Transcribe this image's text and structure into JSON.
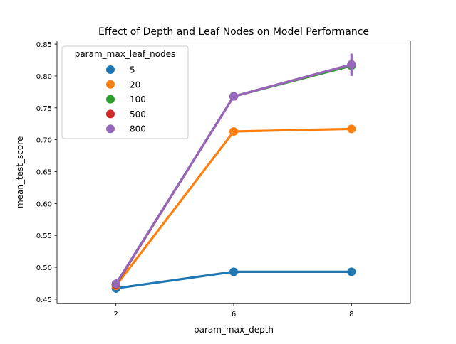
{
  "chart_data": {
    "type": "line",
    "title": "Effect of Depth and Leaf Nodes on Model Performance",
    "xlabel": "param_max_depth",
    "ylabel": "mean_test_score",
    "categories": [
      "2",
      "6",
      "8"
    ],
    "ylim": [
      0.443,
      0.855
    ],
    "yticks": [
      "0.45",
      "0.50",
      "0.55",
      "0.60",
      "0.65",
      "0.70",
      "0.75",
      "0.80",
      "0.85"
    ],
    "grid": false,
    "legend": {
      "title": "param_max_leaf_nodes",
      "placement": "top-left"
    },
    "series": [
      {
        "name": "5",
        "color": "#1f77b4",
        "values": [
          0.467,
          0.493,
          0.493
        ],
        "errors": [
          [
            0.46,
            0.474
          ],
          null,
          null
        ]
      },
      {
        "name": "20",
        "color": "#ff7f0e",
        "values": [
          0.471,
          0.713,
          0.717
        ],
        "errors": [
          null,
          null,
          null
        ]
      },
      {
        "name": "100",
        "color": "#2ca02c",
        "values": [
          0.473,
          0.768,
          0.816
        ],
        "errors": [
          null,
          null,
          null
        ]
      },
      {
        "name": "500",
        "color": "#d62728",
        "values": [
          0.473,
          0.768,
          0.818
        ],
        "errors": [
          null,
          null,
          null
        ]
      },
      {
        "name": "800",
        "color": "#9467bd",
        "values": [
          0.474,
          0.768,
          0.818
        ],
        "errors": [
          [
            0.468,
            0.481
          ],
          null,
          [
            0.8,
            0.835
          ]
        ]
      }
    ]
  }
}
